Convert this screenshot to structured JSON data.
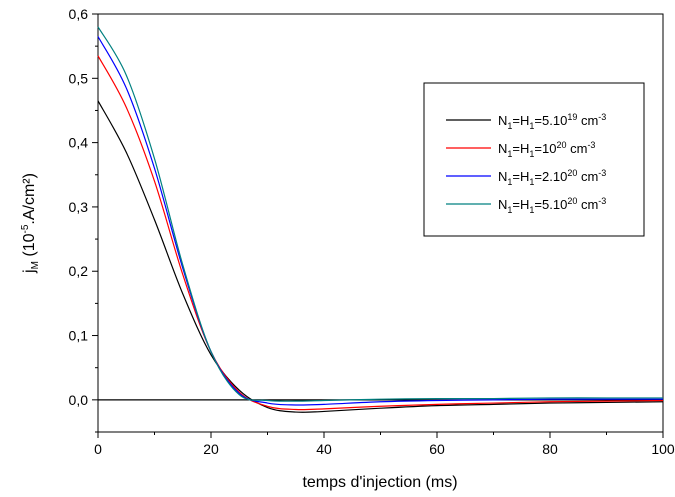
{
  "chart_data": {
    "type": "line",
    "xlabel": "temps d'injection (ms)",
    "ylabel": {
      "main": "j",
      "sub": "M",
      "pre": " (10",
      "sup": "-5",
      "post": ".A/cm²)"
    },
    "xlim": [
      0,
      100
    ],
    "ylim": [
      -0.05,
      0.6
    ],
    "x_ticks": [
      0,
      20,
      40,
      60,
      80,
      100
    ],
    "x_tick_labels": [
      "0",
      "20",
      "40",
      "60",
      "80",
      "100"
    ],
    "y_ticks": [
      0.0,
      0.1,
      0.2,
      0.3,
      0.4,
      0.5,
      0.6
    ],
    "y_tick_labels": [
      "0,0",
      "0,1",
      "0,2",
      "0,3",
      "0,4",
      "0,5",
      "0,6"
    ],
    "zero_line": true,
    "grid": false,
    "legend_position": "top-right",
    "series": [
      {
        "label": {
          "a": "N",
          "a_sub": "1",
          "b": "=H",
          "b_sub": "1",
          "c": "=5.10",
          "c_sup": "19",
          "d": " cm",
          "d_sup": "-3"
        },
        "color": "#000000",
        "x": [
          0,
          5,
          10,
          15,
          20,
          25,
          30,
          35,
          40,
          50,
          60,
          70,
          80,
          90,
          100
        ],
        "y": [
          0.465,
          0.385,
          0.28,
          0.165,
          0.07,
          0.015,
          -0.012,
          -0.019,
          -0.018,
          -0.013,
          -0.009,
          -0.007,
          -0.005,
          -0.004,
          -0.003
        ]
      },
      {
        "label": {
          "a": "N",
          "a_sub": "1",
          "b": "=H",
          "b_sub": "1",
          "c": "=10",
          "c_sup": "20",
          "d": " cm",
          "d_sup": "-3"
        },
        "color": "#ff0000",
        "x": [
          0,
          5,
          10,
          15,
          20,
          25,
          30,
          35,
          40,
          50,
          60,
          70,
          80,
          90,
          100
        ],
        "y": [
          0.535,
          0.455,
          0.34,
          0.195,
          0.075,
          0.012,
          -0.01,
          -0.015,
          -0.014,
          -0.01,
          -0.007,
          -0.005,
          -0.003,
          -0.002,
          -0.001
        ]
      },
      {
        "label": {
          "a": "N",
          "a_sub": "1",
          "b": "=H",
          "b_sub": "1",
          "c": "=2.10",
          "c_sup": "20",
          "d": " cm",
          "d_sup": "-3"
        },
        "color": "#0000ff",
        "x": [
          0,
          5,
          10,
          15,
          20,
          25,
          30,
          35,
          40,
          50,
          60,
          70,
          80,
          90,
          100
        ],
        "y": [
          0.565,
          0.485,
          0.36,
          0.205,
          0.075,
          0.01,
          -0.005,
          -0.008,
          -0.007,
          -0.003,
          -0.001,
          0.0,
          0.001,
          0.001,
          0.001
        ]
      },
      {
        "label": {
          "a": "N",
          "a_sub": "1",
          "b": "=H",
          "b_sub": "1",
          "c": "=5.10",
          "c_sup": "20",
          "d": " cm",
          "d_sup": "-3"
        },
        "color": "#008080",
        "x": [
          0,
          5,
          10,
          15,
          20,
          25,
          30,
          35,
          40,
          50,
          60,
          70,
          80,
          90,
          100
        ],
        "y": [
          0.58,
          0.505,
          0.375,
          0.21,
          0.075,
          0.008,
          -0.001,
          -0.002,
          -0.001,
          0.001,
          0.002,
          0.002,
          0.003,
          0.003,
          0.003
        ]
      }
    ]
  }
}
